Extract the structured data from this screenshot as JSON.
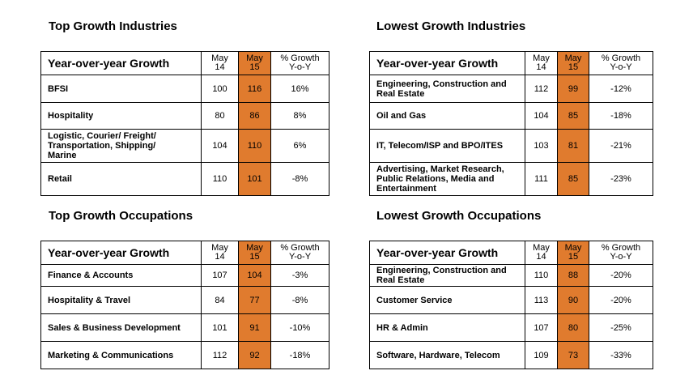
{
  "chart_data": [
    {
      "type": "table",
      "title": "Top Growth Industries",
      "header": {
        "label": "Year-over-year Growth",
        "col1": [
          "May",
          "14"
        ],
        "col2": [
          "May",
          "15"
        ],
        "col3": [
          "% Growth",
          "Y-o-Y"
        ]
      },
      "rows": [
        {
          "label": [
            "BFSI"
          ],
          "may14": "100",
          "may15": "116",
          "growth": "16%"
        },
        {
          "label": [
            "Hospitality"
          ],
          "may14": "80",
          "may15": "86",
          "growth": "8%"
        },
        {
          "label": [
            "Logistic, Courier/ Freight/",
            "Transportation, Shipping/",
            "Marine"
          ],
          "may14": "104",
          "may15": "110",
          "growth": "6%"
        },
        {
          "label": [
            "Retail"
          ],
          "may14": "110",
          "may15": "101",
          "growth": "-8%"
        }
      ]
    },
    {
      "type": "table",
      "title": "Lowest Growth Industries",
      "header": {
        "label": "Year-over-year Growth",
        "col1": [
          "May",
          "14"
        ],
        "col2": [
          "May",
          "15"
        ],
        "col3": [
          "% Growth",
          "Y-o-Y"
        ]
      },
      "rows": [
        {
          "label": [
            "Engineering, Construction and",
            "Real Estate"
          ],
          "may14": "112",
          "may15": "99",
          "growth": "-12%"
        },
        {
          "label": [
            "Oil and Gas"
          ],
          "may14": "104",
          "may15": "85",
          "growth": "-18%"
        },
        {
          "label": [
            "IT, Telecom/ISP and BPO/ITES"
          ],
          "may14": "103",
          "may15": "81",
          "growth": "-21%"
        },
        {
          "label": [
            "Advertising, Market Research,",
            "Public Relations, Media and",
            "Entertainment"
          ],
          "may14": "111",
          "may15": "85",
          "growth": "-23%"
        }
      ]
    },
    {
      "type": "table",
      "title": "Top Growth Occupations",
      "header": {
        "label": "Year-over-year Growth",
        "col1": [
          "May",
          "14"
        ],
        "col2": [
          "May",
          "15"
        ],
        "col3": [
          "% Growth",
          "Y-o-Y"
        ]
      },
      "rows": [
        {
          "label": [
            "Finance & Accounts"
          ],
          "may14": "107",
          "may15": "104",
          "growth": "-3%"
        },
        {
          "label": [
            "Hospitality & Travel"
          ],
          "may14": "84",
          "may15": "77",
          "growth": "-8%"
        },
        {
          "label": [
            "Sales & Business Development"
          ],
          "may14": "101",
          "may15": "91",
          "growth": "-10%"
        },
        {
          "label": [
            "Marketing & Communications"
          ],
          "may14": "112",
          "may15": "92",
          "growth": "-18%"
        }
      ]
    },
    {
      "type": "table",
      "title": "Lowest Growth Occupations",
      "header": {
        "label": "Year-over-year Growth",
        "col1": [
          "May",
          "14"
        ],
        "col2": [
          "May",
          "15"
        ],
        "col3": [
          "% Growth",
          "Y-o-Y"
        ]
      },
      "rows": [
        {
          "label": [
            "Engineering, Construction and",
            "Real Estate"
          ],
          "may14": "110",
          "may15": "88",
          "growth": "-20%"
        },
        {
          "label": [
            "Customer Service"
          ],
          "may14": "113",
          "may15": "90",
          "growth": "-20%"
        },
        {
          "label": [
            "HR & Admin"
          ],
          "may14": "107",
          "may15": "80",
          "growth": "-25%"
        },
        {
          "label": [
            "Software, Hardware, Telecom"
          ],
          "may14": "109",
          "may15": "73",
          "growth": "-33%"
        }
      ]
    }
  ],
  "colors": {
    "highlight": "#e07b2e",
    "border": "#000000"
  }
}
